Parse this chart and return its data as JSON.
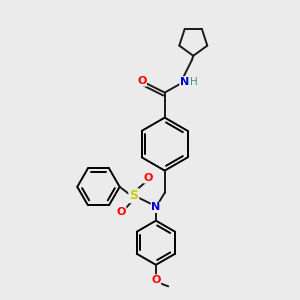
{
  "background_color": "#ebebeb",
  "bond_color": "#1a1a1a",
  "atom_colors": {
    "O": "#ff0000",
    "N": "#0000cc",
    "S": "#cccc00",
    "H": "#4a9090",
    "C": "#1a1a1a"
  },
  "line_width": 1.4,
  "figsize": [
    3.0,
    3.0
  ],
  "dpi": 100,
  "xlim": [
    0,
    10
  ],
  "ylim": [
    0,
    10
  ]
}
